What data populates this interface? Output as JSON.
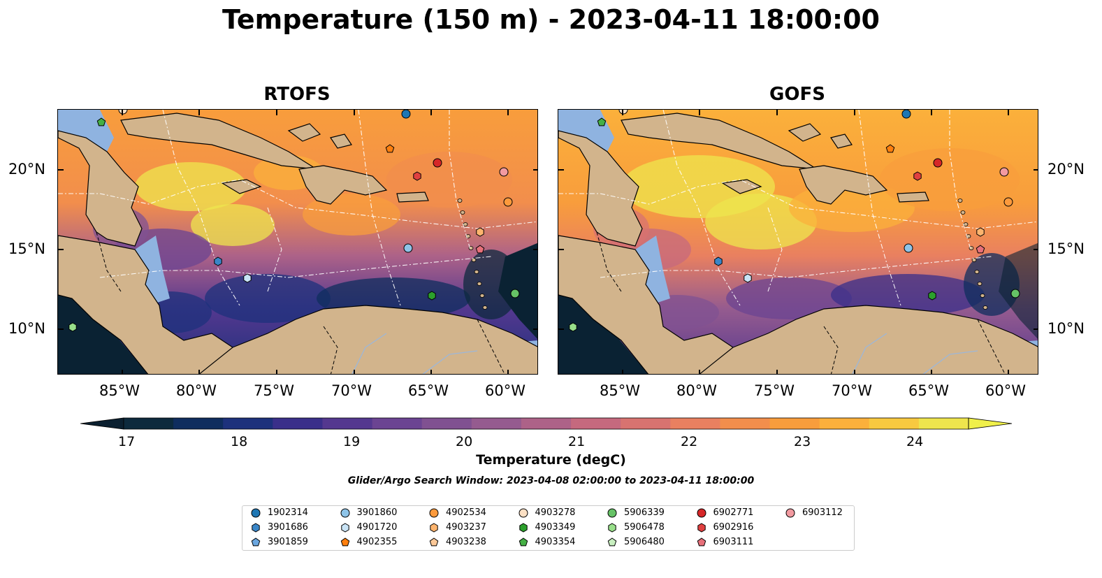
{
  "title": "Temperature (150 m) - 2023-04-11 18:00:00",
  "panels": [
    {
      "title": "RTOFS"
    },
    {
      "title": "GOFS"
    }
  ],
  "axes": {
    "lon_ticks": [
      "85°W",
      "80°W",
      "75°W",
      "70°W",
      "65°W",
      "60°W"
    ],
    "lat_ticks": [
      "20°N",
      "15°N",
      "10°N"
    ]
  },
  "colorbar": {
    "label": "Temperature (degC)",
    "ticks": [
      "17",
      "18",
      "19",
      "20",
      "21",
      "22",
      "23",
      "24"
    ],
    "range": [
      17,
      24.5
    ],
    "step": 0.5,
    "colors": [
      "#0d2a3d",
      "#0f2d5e",
      "#1d317c",
      "#3a2f8a",
      "#54388f",
      "#6b4492",
      "#805191",
      "#955b8f",
      "#ad6288",
      "#c5697e",
      "#d87370",
      "#e98060",
      "#f28e4c",
      "#f89d3c",
      "#fbb03b",
      "#f8c940",
      "#eee54d"
    ],
    "extend": "both",
    "over_color": "#f0f04a",
    "under_color": "#0b2030"
  },
  "search_window": "Glider/Argo Search Window: 2023-04-08 02:00:00 to 2023-04-11 18:00:00",
  "map_colors": {
    "land": "#d2b48c",
    "shelf": "#8fb3e0",
    "deep": "#0a2233"
  },
  "legend": [
    {
      "id": "1902314",
      "marker": "circle",
      "color": "#1f77b4"
    },
    {
      "id": "3901686",
      "marker": "hexagon",
      "color": "#3a86c8"
    },
    {
      "id": "3901859",
      "marker": "pentagon",
      "color": "#6aa6df"
    },
    {
      "id": "3901860",
      "marker": "circle",
      "color": "#8ec4e8"
    },
    {
      "id": "4901720",
      "marker": "hexagon",
      "color": "#c9e4f6"
    },
    {
      "id": "4902355",
      "marker": "pentagon",
      "color": "#ff7f0e"
    },
    {
      "id": "4902534",
      "marker": "circle",
      "color": "#fd9a3c"
    },
    {
      "id": "4903237",
      "marker": "hexagon",
      "color": "#fdb46e"
    },
    {
      "id": "4903238",
      "marker": "pentagon",
      "color": "#fdc998"
    },
    {
      "id": "4903278",
      "marker": "circle",
      "color": "#fce0c4"
    },
    {
      "id": "4903349",
      "marker": "hexagon",
      "color": "#2ca02c"
    },
    {
      "id": "4903354",
      "marker": "pentagon",
      "color": "#45b045"
    },
    {
      "id": "5906339",
      "marker": "circle",
      "color": "#66c266"
    },
    {
      "id": "5906478",
      "marker": "hexagon",
      "color": "#98df8a"
    },
    {
      "id": "5906480",
      "marker": "pentagon",
      "color": "#c8efc0"
    },
    {
      "id": "6902771",
      "marker": "circle",
      "color": "#d62728"
    },
    {
      "id": "6902916",
      "marker": "hexagon",
      "color": "#e04040"
    },
    {
      "id": "6903111",
      "marker": "pentagon",
      "color": "#e7707a"
    },
    {
      "id": "6903112",
      "marker": "circle",
      "color": "#f29aa0"
    }
  ]
}
